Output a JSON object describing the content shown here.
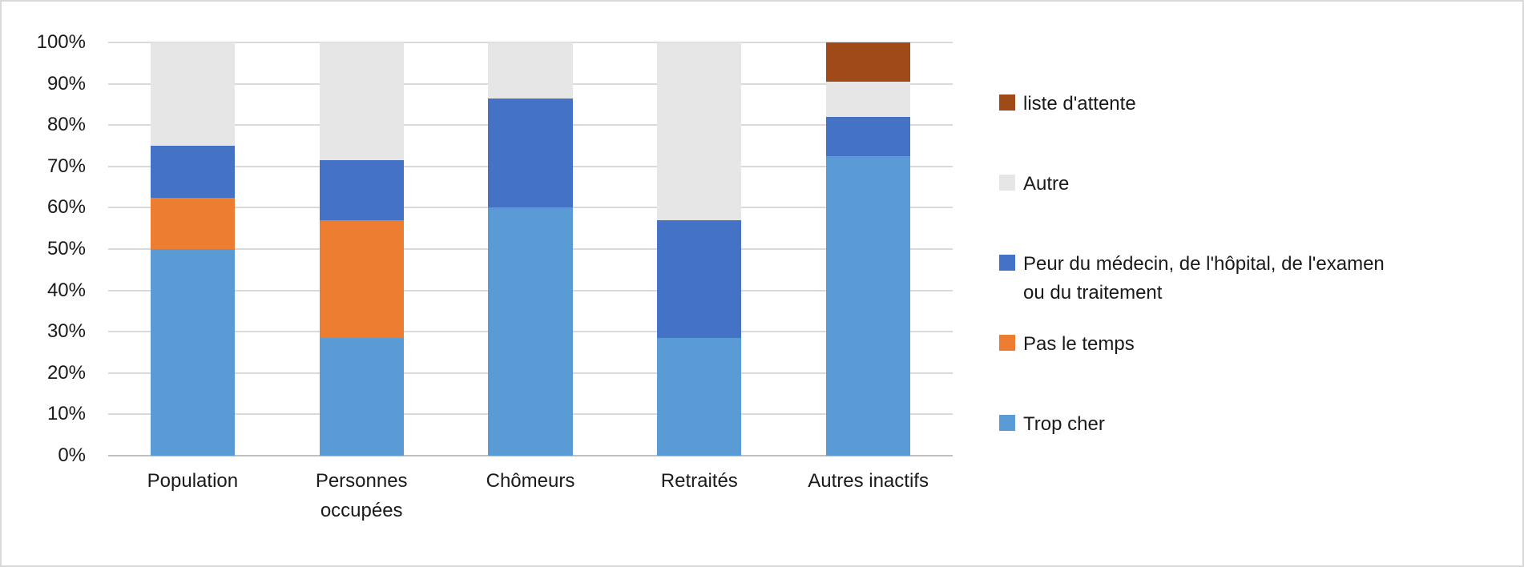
{
  "frame": {
    "background": "#ffffff",
    "border_color": "#d9d9d9"
  },
  "chart_data": {
    "type": "bar",
    "variant": "stacked-100-column",
    "title": "",
    "xlabel": "",
    "ylabel": "",
    "grid": true,
    "gridline_color": "#d9d9d9",
    "axis_line_color": "#bfbfbf",
    "categories": [
      "Population",
      "Personnes occupées",
      "Chômeurs",
      "Retraités",
      "Autres inactifs"
    ],
    "category_label_lines": [
      [
        "Population"
      ],
      [
        "Personnes",
        "occupées"
      ],
      [
        "Chômeurs"
      ],
      [
        "Retraités"
      ],
      [
        "Autres inactifs"
      ]
    ],
    "series": [
      {
        "name": "Trop cher",
        "color": "#5b9bd5",
        "values": [
          50,
          28.5,
          60,
          28.5,
          72.5
        ]
      },
      {
        "name": "Pas le temps",
        "color": "#ed7d31",
        "values": [
          12.5,
          28.5,
          0,
          0,
          0
        ]
      },
      {
        "name": "Peur du médecin, de l'hôpital, de l'examen ou du traitement",
        "color": "#4472c4",
        "values": [
          12.5,
          14.5,
          26.5,
          28.5,
          9.5
        ]
      },
      {
        "name": "Autre",
        "color": "#e7e6e6",
        "values": [
          25,
          28.5,
          13.5,
          43,
          8.5
        ]
      },
      {
        "name": "liste d'attente",
        "color": "#a04a1a",
        "values": [
          0,
          0,
          0,
          0,
          9.5
        ]
      }
    ],
    "y_axis": {
      "min": 0,
      "max": 100,
      "step": 10,
      "format": "percent",
      "tick_labels_top_to_bottom": [
        "100%",
        "90%",
        "80%",
        "70%",
        "60%",
        "50%",
        "40%",
        "30%",
        "20%",
        "10%",
        "0%"
      ]
    },
    "legend": {
      "position": "right",
      "items_top_to_bottom": [
        {
          "label": "liste d'attente",
          "lines": [
            "liste d'attente"
          ],
          "color": "#a04a1a"
        },
        {
          "label": "Autre",
          "lines": [
            "Autre"
          ],
          "color": "#e7e6e6"
        },
        {
          "label": "Peur du médecin, de l'hôpital, de l'examen ou du traitement",
          "lines": [
            "Peur du médecin, de l'hôpital, de l'examen",
            "ou du traitement"
          ],
          "color": "#4472c4"
        },
        {
          "label": "Pas le temps",
          "lines": [
            "Pas le temps"
          ],
          "color": "#ed7d31"
        },
        {
          "label": "Trop cher",
          "lines": [
            "Trop cher"
          ],
          "color": "#5b9bd5"
        }
      ]
    }
  }
}
